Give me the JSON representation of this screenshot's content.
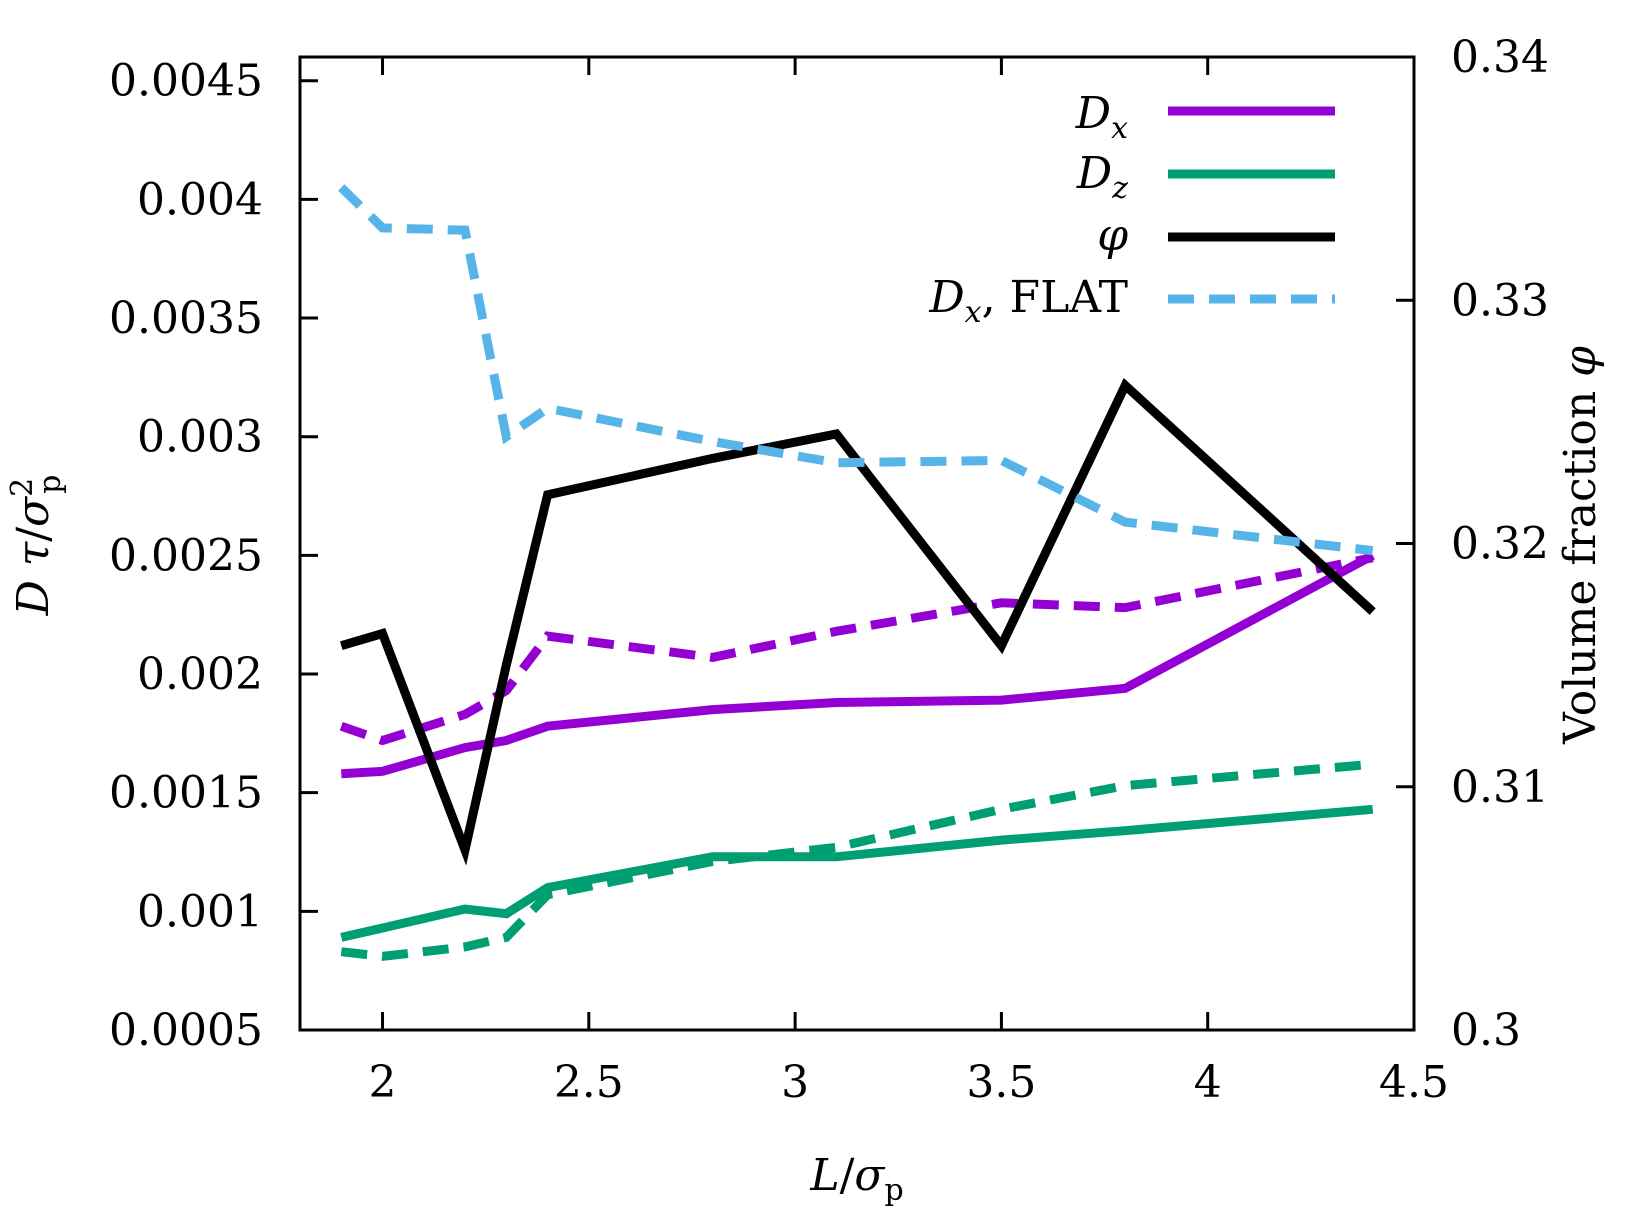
{
  "chart_data": {
    "type": "line",
    "xlabel": "L/σp",
    "ylabel_left": "D τ/σp²",
    "ylabel_right": "Volume fraction φ",
    "xlim": [
      1.8,
      4.5
    ],
    "ylim_left": [
      0.0005,
      0.0046
    ],
    "ylim_right": [
      0.3,
      0.34
    ],
    "x_ticks": [
      "2",
      "2.5",
      "3",
      "3.5",
      "4",
      "4.5"
    ],
    "y_left_ticks": [
      "0.0005",
      "0.001",
      "0.0015",
      "0.002",
      "0.0025",
      "0.003",
      "0.0035",
      "0.004",
      "0.0045"
    ],
    "y_right_ticks": [
      "0.3",
      "0.31",
      "0.32",
      "0.33",
      "0.34"
    ],
    "legend": [
      "D_x",
      "D_z",
      "φ",
      "D_x, FLAT"
    ],
    "legend_placement": "top-right",
    "grid": false,
    "colors": {
      "purple": "#9400d3",
      "green": "#009e73",
      "black": "#000000",
      "skyblue": "#56b4e9"
    },
    "series": [
      {
        "name": "D_x",
        "axis": "left",
        "color": "#9400d3",
        "dash": "solid",
        "x": [
          1.9,
          2.0,
          2.2,
          2.3,
          2.4,
          2.8,
          3.1,
          3.5,
          3.8,
          4.4
        ],
        "y": [
          0.00158,
          0.00159,
          0.00169,
          0.00172,
          0.00178,
          0.00185,
          0.00188,
          0.00189,
          0.00194,
          0.0025
        ]
      },
      {
        "axis": "left",
        "color": "#9400d3",
        "dash": "dashed",
        "x": [
          1.9,
          2.0,
          2.2,
          2.3,
          2.4,
          2.8,
          3.1,
          3.5,
          3.8,
          4.4
        ],
        "y": [
          0.00178,
          0.00172,
          0.00183,
          0.00193,
          0.00216,
          0.00207,
          0.00218,
          0.0023,
          0.00228,
          0.00249
        ]
      },
      {
        "name": "D_z",
        "axis": "left",
        "color": "#009e73",
        "dash": "solid",
        "x": [
          1.9,
          2.0,
          2.2,
          2.3,
          2.4,
          2.8,
          3.1,
          3.5,
          3.8,
          4.4
        ],
        "y": [
          0.00089,
          0.00093,
          0.00101,
          0.00099,
          0.0011,
          0.00123,
          0.00123,
          0.0013,
          0.00134,
          0.00143
        ]
      },
      {
        "axis": "left",
        "color": "#009e73",
        "dash": "dashed",
        "x": [
          1.9,
          2.0,
          2.2,
          2.3,
          2.4,
          2.8,
          3.1,
          3.5,
          3.8,
          4.4
        ],
        "y": [
          0.00083,
          0.00081,
          0.00085,
          0.00089,
          0.00107,
          0.00121,
          0.00127,
          0.00143,
          0.00153,
          0.00162
        ]
      },
      {
        "name": "φ",
        "axis": "right",
        "color": "#000000",
        "dash": "solid",
        "x": [
          1.9,
          2.0,
          2.2,
          2.3,
          2.4,
          2.8,
          3.1,
          3.5,
          3.8,
          4.4
        ],
        "y": [
          0.3158,
          0.3163,
          0.3074,
          0.315,
          0.322,
          0.3235,
          0.3245,
          0.3158,
          0.3265,
          0.3172
        ]
      },
      {
        "name": "D_x, FLAT",
        "axis": "left",
        "color": "#56b4e9",
        "dash": "dashed",
        "x": [
          1.9,
          2.0,
          2.2,
          2.3,
          2.4,
          2.8,
          3.1,
          3.5,
          3.8,
          4.4
        ],
        "y": [
          0.00405,
          0.00388,
          0.00387,
          0.003,
          0.00312,
          0.00298,
          0.00289,
          0.0029,
          0.00264,
          0.00252
        ]
      }
    ]
  }
}
